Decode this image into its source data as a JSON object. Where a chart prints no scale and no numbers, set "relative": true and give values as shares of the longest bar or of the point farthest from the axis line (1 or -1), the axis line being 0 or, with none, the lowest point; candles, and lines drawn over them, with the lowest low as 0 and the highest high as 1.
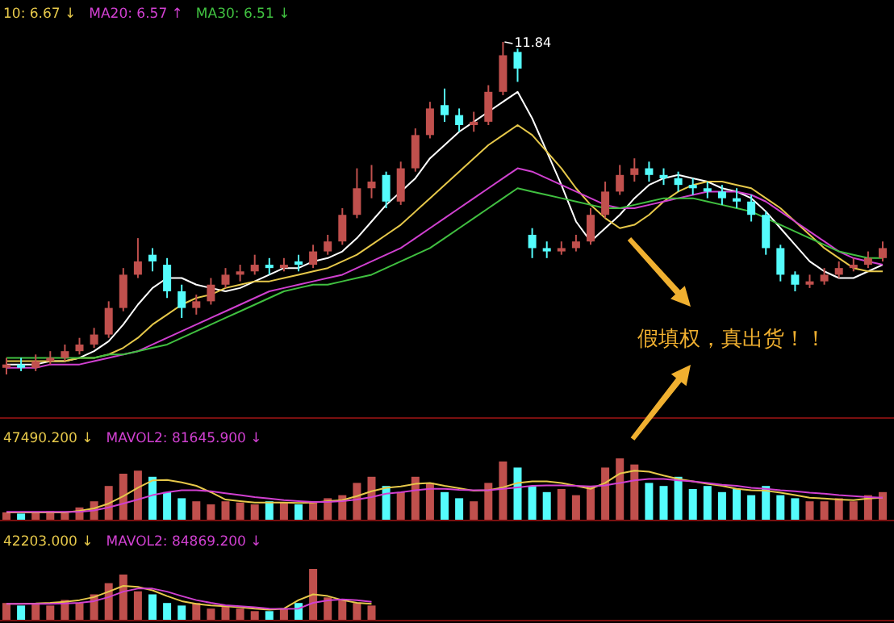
{
  "chart_data": [
    {
      "type": "candlestick",
      "relative": true,
      "legend": "top left",
      "categories": [
        null,
        null,
        null,
        null,
        null,
        null,
        null,
        null,
        null,
        null,
        null,
        null,
        null,
        null,
        null,
        null,
        null,
        null,
        null,
        null,
        null,
        null,
        null,
        null,
        null,
        null,
        null,
        null,
        null,
        null,
        null,
        null,
        null,
        null,
        null,
        null,
        null,
        null,
        null,
        null,
        null,
        null,
        null,
        null,
        null,
        null,
        null,
        null,
        null,
        null,
        null,
        null,
        null,
        null,
        null,
        null,
        null,
        null,
        null,
        null,
        null
      ],
      "ohlc": [
        [
          0.02,
          0.05,
          0.0,
          0.03
        ],
        [
          0.03,
          0.05,
          0.01,
          0.02
        ],
        [
          0.02,
          0.06,
          0.01,
          0.04
        ],
        [
          0.04,
          0.07,
          0.03,
          0.05
        ],
        [
          0.05,
          0.09,
          0.04,
          0.07
        ],
        [
          0.07,
          0.11,
          0.06,
          0.09
        ],
        [
          0.09,
          0.14,
          0.08,
          0.12
        ],
        [
          0.12,
          0.22,
          0.11,
          0.2
        ],
        [
          0.2,
          0.32,
          0.19,
          0.3
        ],
        [
          0.3,
          0.41,
          0.29,
          0.34
        ],
        [
          0.36,
          0.38,
          0.31,
          0.34
        ],
        [
          0.33,
          0.35,
          0.23,
          0.25
        ],
        [
          0.25,
          0.27,
          0.17,
          0.2
        ],
        [
          0.2,
          0.24,
          0.18,
          0.22
        ],
        [
          0.22,
          0.29,
          0.21,
          0.27
        ],
        [
          0.27,
          0.32,
          0.26,
          0.3
        ],
        [
          0.3,
          0.33,
          0.28,
          0.31
        ],
        [
          0.31,
          0.36,
          0.3,
          0.33
        ],
        [
          0.33,
          0.35,
          0.3,
          0.32
        ],
        [
          0.32,
          0.35,
          0.31,
          0.33
        ],
        [
          0.34,
          0.36,
          0.31,
          0.33
        ],
        [
          0.33,
          0.39,
          0.32,
          0.37
        ],
        [
          0.37,
          0.42,
          0.36,
          0.4
        ],
        [
          0.4,
          0.5,
          0.39,
          0.48
        ],
        [
          0.48,
          0.62,
          0.47,
          0.56
        ],
        [
          0.56,
          0.63,
          0.53,
          0.58
        ],
        [
          0.6,
          0.61,
          0.5,
          0.52
        ],
        [
          0.52,
          0.64,
          0.51,
          0.62
        ],
        [
          0.62,
          0.74,
          0.61,
          0.72
        ],
        [
          0.72,
          0.82,
          0.71,
          0.8
        ],
        [
          0.81,
          0.86,
          0.76,
          0.78
        ],
        [
          0.78,
          0.8,
          0.73,
          0.75
        ],
        [
          0.75,
          0.79,
          0.73,
          0.76
        ],
        [
          0.76,
          0.87,
          0.75,
          0.85
        ],
        [
          0.85,
          1.0,
          0.84,
          0.96
        ],
        [
          0.97,
          0.98,
          0.88,
          0.92
        ],
        [
          0.42,
          0.44,
          0.35,
          0.38
        ],
        [
          0.38,
          0.4,
          0.35,
          0.37
        ],
        [
          0.37,
          0.4,
          0.36,
          0.38
        ],
        [
          0.38,
          0.42,
          0.37,
          0.4
        ],
        [
          0.4,
          0.5,
          0.39,
          0.48
        ],
        [
          0.48,
          0.58,
          0.47,
          0.55
        ],
        [
          0.55,
          0.63,
          0.54,
          0.6
        ],
        [
          0.6,
          0.65,
          0.58,
          0.62
        ],
        [
          0.62,
          0.64,
          0.58,
          0.6
        ],
        [
          0.6,
          0.62,
          0.57,
          0.59
        ],
        [
          0.59,
          0.61,
          0.55,
          0.57
        ],
        [
          0.57,
          0.59,
          0.54,
          0.56
        ],
        [
          0.56,
          0.58,
          0.53,
          0.55
        ],
        [
          0.55,
          0.57,
          0.51,
          0.53
        ],
        [
          0.53,
          0.56,
          0.5,
          0.52
        ],
        [
          0.52,
          0.54,
          0.46,
          0.48
        ],
        [
          0.48,
          0.49,
          0.36,
          0.38
        ],
        [
          0.38,
          0.39,
          0.28,
          0.3
        ],
        [
          0.3,
          0.31,
          0.25,
          0.27
        ],
        [
          0.27,
          0.3,
          0.26,
          0.28
        ],
        [
          0.28,
          0.32,
          0.27,
          0.3
        ],
        [
          0.3,
          0.34,
          0.29,
          0.32
        ],
        [
          0.32,
          0.35,
          0.31,
          0.33
        ],
        [
          0.33,
          0.37,
          0.32,
          0.35
        ],
        [
          0.35,
          0.4,
          0.34,
          0.38
        ]
      ],
      "colors": [
        "#c0504d",
        "#54fcfc",
        "#c0504d",
        "#c0504d",
        "#c0504d",
        "#c0504d",
        "#c0504d",
        "#c0504d",
        "#c0504d",
        "#c0504d",
        "#54fcfc",
        "#54fcfc",
        "#54fcfc",
        "#c0504d",
        "#c0504d",
        "#c0504d",
        "#c0504d",
        "#c0504d",
        "#54fcfc",
        "#c0504d",
        "#54fcfc",
        "#c0504d",
        "#c0504d",
        "#c0504d",
        "#c0504d",
        "#c0504d",
        "#54fcfc",
        "#c0504d",
        "#c0504d",
        "#c0504d",
        "#54fcfc",
        "#54fcfc",
        "#c0504d",
        "#c0504d",
        "#c0504d",
        "#54fcfc",
        "#54fcfc",
        "#54fcfc",
        "#c0504d",
        "#c0504d",
        "#c0504d",
        "#c0504d",
        "#c0504d",
        "#c0504d",
        "#54fcfc",
        "#54fcfc",
        "#54fcfc",
        "#54fcfc",
        "#54fcfc",
        "#54fcfc",
        "#54fcfc",
        "#54fcfc",
        "#54fcfc",
        "#54fcfc",
        "#54fcfc",
        "#c0504d",
        "#c0504d",
        "#c0504d",
        "#c0504d",
        "#c0504d",
        "#c0504d"
      ],
      "series": [
        {
          "type": "line",
          "color": "#ffffff",
          "values": [
            0.03,
            0.03,
            0.03,
            0.04,
            0.04,
            0.05,
            0.07,
            0.1,
            0.15,
            0.21,
            0.26,
            0.29,
            0.29,
            0.27,
            0.26,
            0.25,
            0.26,
            0.28,
            0.3,
            0.32,
            0.32,
            0.34,
            0.35,
            0.37,
            0.41,
            0.46,
            0.51,
            0.55,
            0.59,
            0.65,
            0.69,
            0.73,
            0.76,
            0.79,
            0.82,
            0.85,
            0.77,
            0.67,
            0.57,
            0.46,
            0.4,
            0.44,
            0.48,
            0.53,
            0.57,
            0.59,
            0.6,
            0.59,
            0.58,
            0.56,
            0.55,
            0.53,
            0.49,
            0.44,
            0.39,
            0.34,
            0.31,
            0.29,
            0.29,
            0.31,
            0.33
          ]
        },
        {
          "type": "line",
          "name": "10: 6.67 ↓",
          "color": "#e6c84a",
          "values": [
            0.04,
            0.04,
            0.04,
            0.04,
            0.04,
            0.05,
            0.05,
            0.06,
            0.08,
            0.11,
            0.15,
            0.18,
            0.21,
            0.23,
            0.24,
            0.26,
            0.27,
            0.28,
            0.28,
            0.29,
            0.3,
            0.31,
            0.32,
            0.34,
            0.36,
            0.39,
            0.42,
            0.45,
            0.49,
            0.53,
            0.57,
            0.61,
            0.65,
            0.69,
            0.72,
            0.75,
            0.72,
            0.67,
            0.62,
            0.56,
            0.51,
            0.47,
            0.44,
            0.45,
            0.48,
            0.52,
            0.55,
            0.57,
            0.58,
            0.58,
            0.57,
            0.56,
            0.53,
            0.5,
            0.46,
            0.42,
            0.38,
            0.35,
            0.32,
            0.31,
            0.31
          ]
        },
        {
          "type": "line",
          "name": "MA20: 6.57 ↑",
          "color": "#d040d0",
          "values": [
            0.02,
            0.02,
            0.02,
            0.03,
            0.03,
            0.03,
            0.04,
            0.05,
            0.06,
            0.07,
            0.09,
            0.11,
            0.13,
            0.15,
            0.17,
            0.19,
            0.21,
            0.23,
            0.25,
            0.26,
            0.27,
            0.28,
            0.29,
            0.3,
            0.32,
            0.34,
            0.36,
            0.38,
            0.41,
            0.44,
            0.47,
            0.5,
            0.53,
            0.56,
            0.59,
            0.62,
            0.61,
            0.59,
            0.57,
            0.55,
            0.53,
            0.51,
            0.5,
            0.5,
            0.51,
            0.52,
            0.53,
            0.54,
            0.55,
            0.55,
            0.55,
            0.54,
            0.52,
            0.49,
            0.46,
            0.43,
            0.4,
            0.37,
            0.35,
            0.34,
            0.33
          ]
        },
        {
          "type": "line",
          "name": "MA30: 6.51 ↓",
          "color": "#40c040",
          "values": [
            0.05,
            0.05,
            0.05,
            0.05,
            0.05,
            0.05,
            0.05,
            0.06,
            0.06,
            0.07,
            0.08,
            0.09,
            0.11,
            0.13,
            0.15,
            0.17,
            0.19,
            0.21,
            0.23,
            0.25,
            0.26,
            0.27,
            0.27,
            0.28,
            0.29,
            0.3,
            0.32,
            0.34,
            0.36,
            0.38,
            0.41,
            0.44,
            0.47,
            0.5,
            0.53,
            0.56,
            0.55,
            0.54,
            0.53,
            0.52,
            0.51,
            0.5,
            0.5,
            0.51,
            0.52,
            0.53,
            0.53,
            0.53,
            0.52,
            0.51,
            0.5,
            0.49,
            0.47,
            0.45,
            0.43,
            0.41,
            0.39,
            0.37,
            0.36,
            0.35,
            0.35
          ]
        }
      ],
      "annotations": [
        "11.84",
        "假填权，真出货！！"
      ]
    },
    {
      "type": "bar",
      "relative": true,
      "categories": [
        null,
        null,
        null,
        null,
        null,
        null,
        null,
        null,
        null,
        null,
        null,
        null,
        null,
        null,
        null,
        null,
        null,
        null,
        null,
        null,
        null,
        null,
        null,
        null,
        null,
        null,
        null,
        null,
        null,
        null,
        null,
        null,
        null,
        null,
        null,
        null,
        null,
        null,
        null,
        null,
        null,
        null,
        null,
        null,
        null,
        null,
        null,
        null,
        null,
        null,
        null,
        null,
        null,
        null,
        null,
        null,
        null,
        null,
        null,
        null,
        null
      ],
      "series": [
        {
          "type": "bar",
          "colors": [
            "#c0504d",
            "#54fcfc",
            "#c0504d",
            "#c0504d",
            "#c0504d",
            "#c0504d",
            "#c0504d",
            "#c0504d",
            "#c0504d",
            "#c0504d",
            "#54fcfc",
            "#54fcfc",
            "#54fcfc",
            "#c0504d",
            "#c0504d",
            "#c0504d",
            "#c0504d",
            "#c0504d",
            "#54fcfc",
            "#c0504d",
            "#54fcfc",
            "#c0504d",
            "#c0504d",
            "#c0504d",
            "#c0504d",
            "#c0504d",
            "#54fcfc",
            "#c0504d",
            "#c0504d",
            "#c0504d",
            "#54fcfc",
            "#54fcfc",
            "#c0504d",
            "#c0504d",
            "#c0504d",
            "#54fcfc",
            "#54fcfc",
            "#54fcfc",
            "#c0504d",
            "#c0504d",
            "#c0504d",
            "#c0504d",
            "#c0504d",
            "#c0504d",
            "#54fcfc",
            "#54fcfc",
            "#54fcfc",
            "#54fcfc",
            "#54fcfc",
            "#54fcfc",
            "#54fcfc",
            "#54fcfc",
            "#54fcfc",
            "#54fcfc",
            "#54fcfc",
            "#c0504d",
            "#c0504d",
            "#c0504d",
            "#c0504d",
            "#c0504d",
            "#c0504d"
          ],
          "values": [
            0.12,
            0.1,
            0.12,
            0.14,
            0.12,
            0.2,
            0.3,
            0.55,
            0.75,
            0.8,
            0.7,
            0.45,
            0.35,
            0.3,
            0.25,
            0.3,
            0.28,
            0.25,
            0.3,
            0.28,
            0.25,
            0.3,
            0.35,
            0.4,
            0.6,
            0.7,
            0.55,
            0.45,
            0.7,
            0.6,
            0.45,
            0.35,
            0.3,
            0.6,
            0.95,
            0.85,
            0.55,
            0.45,
            0.5,
            0.4,
            0.55,
            0.85,
            1.0,
            0.9,
            0.6,
            0.55,
            0.7,
            0.5,
            0.55,
            0.45,
            0.5,
            0.4,
            0.55,
            0.4,
            0.35,
            0.3,
            0.3,
            0.35,
            0.3,
            0.4,
            0.45
          ]
        }
      ]
    },
    {
      "type": "line",
      "relative": true,
      "legend": "top left",
      "categories": [
        null,
        null,
        null,
        null,
        null,
        null,
        null,
        null,
        null,
        null,
        null,
        null,
        null,
        null,
        null,
        null,
        null,
        null,
        null,
        null,
        null,
        null,
        null,
        null,
        null,
        null,
        null,
        null,
        null,
        null,
        null,
        null,
        null,
        null,
        null,
        null,
        null,
        null,
        null,
        null,
        null,
        null,
        null,
        null,
        null,
        null,
        null,
        null,
        null,
        null,
        null,
        null,
        null,
        null,
        null,
        null,
        null,
        null,
        null,
        null,
        null
      ],
      "series": [
        {
          "name": "47490.200 ↓",
          "color": "#e6c84a",
          "values": [
            0.15,
            0.15,
            0.15,
            0.15,
            0.15,
            0.18,
            0.23,
            0.33,
            0.48,
            0.65,
            0.8,
            0.81,
            0.76,
            0.69,
            0.56,
            0.41,
            0.38,
            0.35,
            0.35,
            0.35,
            0.34,
            0.35,
            0.38,
            0.4,
            0.48,
            0.58,
            0.65,
            0.68,
            0.73,
            0.75,
            0.69,
            0.64,
            0.59,
            0.6,
            0.66,
            0.75,
            0.78,
            0.78,
            0.75,
            0.69,
            0.63,
            0.75,
            0.94,
            1.0,
            0.98,
            0.9,
            0.83,
            0.78,
            0.73,
            0.69,
            0.63,
            0.6,
            0.59,
            0.55,
            0.5,
            0.45,
            0.43,
            0.41,
            0.4,
            0.43,
            0.45
          ]
        },
        {
          "name": "MAVOL2: 81645.900 ↓",
          "color": "#d040d0",
          "values": [
            0.16,
            0.16,
            0.16,
            0.16,
            0.16,
            0.16,
            0.19,
            0.25,
            0.33,
            0.41,
            0.5,
            0.56,
            0.6,
            0.6,
            0.58,
            0.54,
            0.5,
            0.46,
            0.43,
            0.4,
            0.38,
            0.36,
            0.36,
            0.38,
            0.41,
            0.46,
            0.53,
            0.56,
            0.6,
            0.63,
            0.63,
            0.61,
            0.6,
            0.6,
            0.63,
            0.66,
            0.69,
            0.7,
            0.7,
            0.69,
            0.68,
            0.7,
            0.75,
            0.8,
            0.83,
            0.83,
            0.8,
            0.78,
            0.75,
            0.71,
            0.69,
            0.65,
            0.63,
            0.6,
            0.58,
            0.55,
            0.53,
            0.5,
            0.48,
            0.46,
            0.45
          ]
        }
      ]
    },
    {
      "type": "bar",
      "relative": true,
      "categories": [
        null,
        null,
        null,
        null,
        null,
        null,
        null,
        null,
        null,
        null,
        null,
        null,
        null,
        null,
        null,
        null,
        null,
        null,
        null,
        null,
        null,
        null,
        null,
        null,
        null,
        null
      ],
      "series": [
        {
          "type": "bar",
          "colors": [
            "#c0504d",
            "#54fcfc",
            "#c0504d",
            "#c0504d",
            "#c0504d",
            "#c0504d",
            "#c0504d",
            "#c0504d",
            "#c0504d",
            "#c0504d",
            "#54fcfc",
            "#54fcfc",
            "#54fcfc",
            "#c0504d",
            "#c0504d",
            "#c0504d",
            "#c0504d",
            "#c0504d",
            "#54fcfc",
            "#c0504d",
            "#54fcfc",
            "#c0504d",
            "#c0504d",
            "#c0504d",
            "#c0504d",
            "#c0504d"
          ],
          "values": [
            0.33,
            0.28,
            0.33,
            0.28,
            0.39,
            0.33,
            0.5,
            0.72,
            0.89,
            0.56,
            0.5,
            0.33,
            0.28,
            0.33,
            0.22,
            0.28,
            0.22,
            0.17,
            0.17,
            0.22,
            0.33,
            1.0,
            0.44,
            0.39,
            0.33,
            0.28
          ]
        }
      ]
    },
    {
      "type": "line",
      "relative": true,
      "legend": "top left",
      "categories": [
        null,
        null,
        null,
        null,
        null,
        null,
        null,
        null,
        null,
        null,
        null,
        null,
        null,
        null,
        null,
        null,
        null,
        null,
        null,
        null,
        null,
        null,
        null,
        null,
        null,
        null
      ],
      "series": [
        {
          "name": "42203.000 ↓",
          "color": "#e6c84a",
          "values": [
            0.47,
            0.47,
            0.48,
            0.5,
            0.53,
            0.58,
            0.67,
            0.83,
            1.0,
            0.97,
            0.87,
            0.7,
            0.55,
            0.47,
            0.42,
            0.4,
            0.37,
            0.33,
            0.3,
            0.33,
            0.58,
            0.75,
            0.7,
            0.58,
            0.5,
            0.47
          ]
        },
        {
          "name": "MAVOL2: 84869.200 ↓",
          "color": "#d040d0",
          "values": [
            0.47,
            0.47,
            0.47,
            0.47,
            0.48,
            0.5,
            0.55,
            0.67,
            0.83,
            0.92,
            0.92,
            0.83,
            0.7,
            0.58,
            0.5,
            0.43,
            0.4,
            0.37,
            0.33,
            0.32,
            0.33,
            0.5,
            0.57,
            0.6,
            0.58,
            0.53
          ]
        }
      ]
    }
  ]
}
